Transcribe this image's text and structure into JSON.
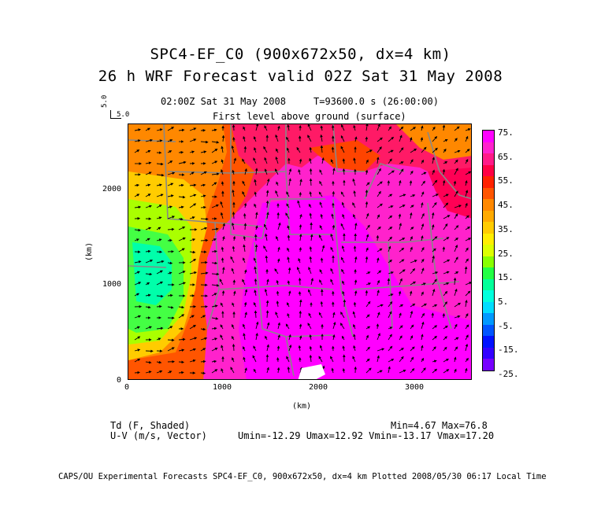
{
  "header": {
    "title_line1": "SPC4-EF_C0 (900x672x50, dx=4 km)",
    "title_line2": "26 h WRF Forecast valid 02Z Sat 31 May 2008",
    "time_label": "02:00Z Sat 31 May 2008",
    "time_value": "T=93600.0 s (26:00:00)",
    "level_label": "First level above ground (surface)"
  },
  "corner": {
    "vec_scale_top": "5.0",
    "vec_scale_right": "5.0"
  },
  "axes": {
    "x_ticks": [
      "0",
      "1000",
      "2000",
      "3000"
    ],
    "y_ticks": [
      "0",
      "1000",
      "2000"
    ],
    "x_label": "(km)",
    "y_label": "(km)"
  },
  "colorbar": {
    "labels": [
      "75.",
      "65.",
      "55.",
      "45.",
      "35.",
      "25.",
      "15.",
      "5.",
      "-5.",
      "-15.",
      "-25."
    ],
    "colors": [
      "#ff00ff",
      "#ff22cc",
      "#ff1a88",
      "#ff0044",
      "#ff2200",
      "#ff5500",
      "#ff8800",
      "#ffaa00",
      "#ffcc00",
      "#ffee00",
      "#ddff00",
      "#88ff00",
      "#22ff44",
      "#00ff99",
      "#00ffdd",
      "#00ddff",
      "#0099ff",
      "#0055ff",
      "#0011ff",
      "#3300ff",
      "#7700ff"
    ]
  },
  "footer": {
    "field1": "Td (F, Shaded)",
    "field2": "U-V (m/s, Vector)",
    "stats1": "Min=4.67 Max=76.8",
    "stats2": "Umin=-12.29 Umax=12.92 Vmin=-13.17 Vmax=17.20",
    "credit": "CAPS/OU Experimental Forecasts  SPC4-EF_C0, 900x672x50, dx=4 km  Plotted 2008/05/30 06:17 Local Time"
  }
}
